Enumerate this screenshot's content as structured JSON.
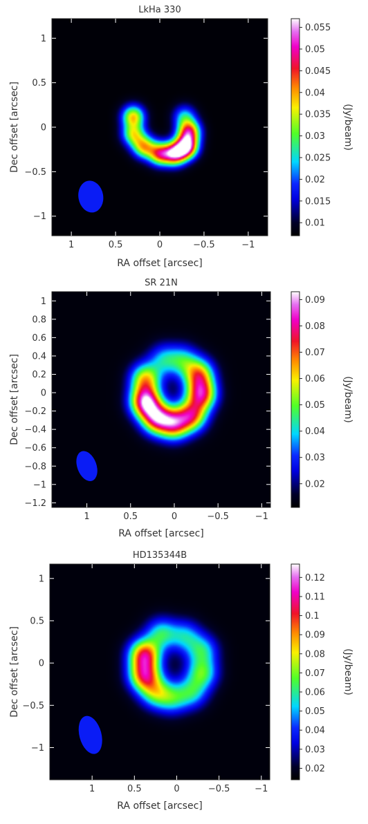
{
  "chart_data": [
    {
      "type": "heatmap",
      "title": "LkHa 330",
      "xlabel": "RA offset [arcsec]",
      "ylabel": "Dec offset [arcsec]",
      "colorbar_label": "(Jy/beam)",
      "x_ticks": [
        "1",
        "0.5",
        "0",
        "−0.5",
        "−1"
      ],
      "x_tick_values": [
        1,
        0.5,
        0,
        -0.5,
        -1
      ],
      "y_ticks": [
        "1",
        "0.5",
        "0",
        "−0.5",
        "−1"
      ],
      "y_tick_values": [
        1,
        0.5,
        0,
        -0.5,
        -1
      ],
      "xlim": [
        1.22,
        -1.22
      ],
      "ylim": [
        -1.22,
        1.22
      ],
      "colorbar_ticks": [
        "0.055",
        "0.05",
        "0.045",
        "0.04",
        "0.035",
        "0.03",
        "0.025",
        "0.02",
        "0.015",
        "0.01"
      ],
      "colorbar_tick_values": [
        0.055,
        0.05,
        0.045,
        0.04,
        0.035,
        0.03,
        0.025,
        0.02,
        0.015,
        0.01
      ],
      "colorbar_range": [
        0.007,
        0.057
      ],
      "background": 0.0075,
      "emission": [
        {
          "x": 0.3,
          "y": 0.12,
          "sx": 0.09,
          "sy": 0.09,
          "amp": 0.029
        },
        {
          "x": 0.3,
          "y": -0.08,
          "sx": 0.09,
          "sy": 0.09,
          "amp": 0.024
        },
        {
          "x": 0.18,
          "y": -0.22,
          "sx": 0.09,
          "sy": 0.09,
          "amp": 0.028
        },
        {
          "x": 0.0,
          "y": -0.3,
          "sx": 0.09,
          "sy": 0.09,
          "amp": 0.033
        },
        {
          "x": -0.17,
          "y": -0.3,
          "sx": 0.09,
          "sy": 0.09,
          "amp": 0.04
        },
        {
          "x": -0.3,
          "y": -0.22,
          "sx": 0.09,
          "sy": 0.09,
          "amp": 0.046
        },
        {
          "x": -0.33,
          "y": -0.05,
          "sx": 0.09,
          "sy": 0.09,
          "amp": 0.035
        },
        {
          "x": -0.28,
          "y": 0.12,
          "sx": 0.09,
          "sy": 0.09,
          "amp": 0.016
        }
      ],
      "beam": {
        "x": 0.78,
        "y": -0.78,
        "major": 0.18,
        "minor": 0.14,
        "pa_deg": 10
      }
    },
    {
      "type": "heatmap",
      "title": "SR 21N",
      "xlabel": "RA offset [arcsec]",
      "ylabel": "Dec offset [arcsec]",
      "colorbar_label": "(Jy/beam)",
      "x_ticks": [
        "1",
        "0.5",
        "0",
        "−0.5",
        "−1"
      ],
      "x_tick_values": [
        1,
        0.5,
        0,
        -0.5,
        -1
      ],
      "y_ticks": [
        "1",
        "0.8",
        "0.6",
        "0.4",
        "0.2",
        "0",
        "−0.2",
        "−0.4",
        "−0.6",
        "−0.8",
        "−1",
        "−1.2"
      ],
      "y_tick_values": [
        1,
        0.8,
        0.6,
        0.4,
        0.2,
        0,
        -0.2,
        -0.4,
        -0.6,
        -0.8,
        -1,
        -1.2
      ],
      "xlim": [
        1.4,
        -1.1
      ],
      "ylim": [
        -1.25,
        1.1
      ],
      "colorbar_ticks": [
        "0.09",
        "0.08",
        "0.07",
        "0.06",
        "0.05",
        "0.04",
        "0.03",
        "0.02"
      ],
      "colorbar_tick_values": [
        0.09,
        0.08,
        0.07,
        0.06,
        0.05,
        0.04,
        0.03,
        0.02
      ],
      "colorbar_range": [
        0.011,
        0.093
      ],
      "background": 0.0125,
      "emission": [
        {
          "x": 0.33,
          "y": 0.15,
          "sx": 0.12,
          "sy": 0.12,
          "amp": 0.045
        },
        {
          "x": 0.33,
          "y": -0.1,
          "sx": 0.12,
          "sy": 0.12,
          "amp": 0.07
        },
        {
          "x": 0.2,
          "y": -0.28,
          "sx": 0.12,
          "sy": 0.12,
          "amp": 0.06
        },
        {
          "x": 0.0,
          "y": -0.34,
          "sx": 0.12,
          "sy": 0.12,
          "amp": 0.055
        },
        {
          "x": -0.2,
          "y": -0.25,
          "sx": 0.12,
          "sy": 0.12,
          "amp": 0.052
        },
        {
          "x": -0.31,
          "y": -0.02,
          "sx": 0.12,
          "sy": 0.12,
          "amp": 0.058
        },
        {
          "x": -0.28,
          "y": 0.2,
          "sx": 0.12,
          "sy": 0.12,
          "amp": 0.048
        },
        {
          "x": -0.1,
          "y": 0.35,
          "sx": 0.12,
          "sy": 0.12,
          "amp": 0.026
        },
        {
          "x": 0.12,
          "y": 0.36,
          "sx": 0.12,
          "sy": 0.12,
          "amp": 0.024
        }
      ],
      "beam": {
        "x": 1.0,
        "y": -0.8,
        "major": 0.17,
        "minor": 0.11,
        "pa_deg": 20
      }
    },
    {
      "type": "heatmap",
      "title": "HD135344B",
      "xlabel": "RA offset [arcsec]",
      "ylabel": "Dec offset [arcsec]",
      "colorbar_label": "(Jy/beam)",
      "x_ticks": [
        "1",
        "0.5",
        "0",
        "−0.5",
        "−1"
      ],
      "x_tick_values": [
        1,
        0.5,
        0,
        -0.5,
        -1
      ],
      "y_ticks": [
        "1",
        "0.5",
        "0",
        "−0.5",
        "−1"
      ],
      "y_tick_values": [
        1,
        0.5,
        0,
        -0.5,
        -1
      ],
      "xlim": [
        1.5,
        -1.1
      ],
      "ylim": [
        -1.38,
        1.17
      ],
      "colorbar_ticks": [
        "0.12",
        "0.11",
        "0.1",
        "0.09",
        "0.08",
        "0.07",
        "0.06",
        "0.05",
        "0.04",
        "0.03",
        "0.02"
      ],
      "colorbar_tick_values": [
        0.12,
        0.11,
        0.1,
        0.09,
        0.08,
        0.07,
        0.06,
        0.05,
        0.04,
        0.03,
        0.02
      ],
      "colorbar_range": [
        0.014,
        0.127
      ],
      "background": 0.016,
      "emission": [
        {
          "x": 0.38,
          "y": 0.1,
          "sx": 0.13,
          "sy": 0.13,
          "amp": 0.08
        },
        {
          "x": 0.38,
          "y": -0.15,
          "sx": 0.13,
          "sy": 0.13,
          "amp": 0.075
        },
        {
          "x": 0.25,
          "y": -0.35,
          "sx": 0.13,
          "sy": 0.13,
          "amp": 0.045
        },
        {
          "x": 0.05,
          "y": -0.42,
          "sx": 0.13,
          "sy": 0.13,
          "amp": 0.035
        },
        {
          "x": -0.18,
          "y": -0.35,
          "sx": 0.13,
          "sy": 0.13,
          "amp": 0.036
        },
        {
          "x": -0.3,
          "y": -0.12,
          "sx": 0.13,
          "sy": 0.13,
          "amp": 0.045
        },
        {
          "x": -0.3,
          "y": 0.15,
          "sx": 0.13,
          "sy": 0.13,
          "amp": 0.038
        },
        {
          "x": -0.1,
          "y": 0.32,
          "sx": 0.13,
          "sy": 0.13,
          "amp": 0.033
        },
        {
          "x": 0.18,
          "y": 0.35,
          "sx": 0.13,
          "sy": 0.13,
          "amp": 0.04
        }
      ],
      "beam": {
        "x": 1.02,
        "y": -0.85,
        "major": 0.23,
        "minor": 0.13,
        "pa_deg": 15
      }
    }
  ]
}
